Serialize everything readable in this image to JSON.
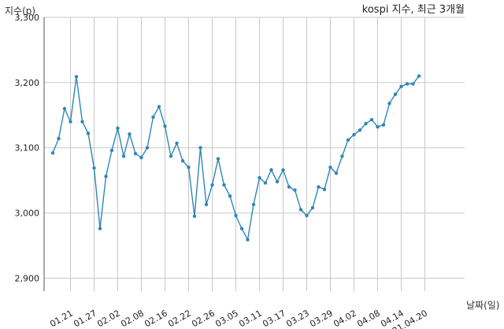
{
  "chart_data": {
    "type": "line",
    "title": "kospi 지수, 최근 3개월",
    "ylabel": "지수(p)",
    "xlabel": "날짜(일)",
    "ylim": [
      2880,
      3300
    ],
    "yticks": [
      2900,
      3000,
      3100,
      3200,
      3300
    ],
    "ytick_labels": [
      "2,900",
      "3,000",
      "3,100",
      "3,200",
      "3,300"
    ],
    "xtick_labels": [
      "01.21",
      "01.27",
      "02.02",
      "02.08",
      "02.16",
      "02.22",
      "02.26",
      "03.05",
      "03.11",
      "03.17",
      "03.23",
      "03.29",
      "04.02",
      "04.08",
      "04.14",
      "21.04.20"
    ],
    "xtick_index": [
      3,
      7,
      11,
      15,
      19,
      23,
      27,
      31,
      35,
      39,
      43,
      47,
      51,
      55,
      59,
      63
    ],
    "grid": true,
    "line_color": "#2f86b6",
    "series": [
      {
        "values": [
          3092,
          3114,
          3160,
          3140,
          3209,
          3140,
          3122,
          3069,
          2976,
          3056,
          3096,
          3130,
          3087,
          3121,
          3091,
          3085,
          3100,
          3147,
          3163,
          3133,
          3087,
          3107,
          3080,
          3070,
          2995,
          3100,
          3013,
          3043,
          3083,
          3043,
          3026,
          2996,
          2976,
          2959,
          3013,
          3054,
          3046,
          3066,
          3048,
          3066,
          3040,
          3035,
          3005,
          2996,
          3008,
          3040,
          3036,
          3070,
          3061,
          3087,
          3112,
          3120,
          3127,
          3137,
          3143,
          3132,
          3135,
          3168,
          3182,
          3194,
          3198,
          3198,
          3210
        ]
      }
    ]
  }
}
